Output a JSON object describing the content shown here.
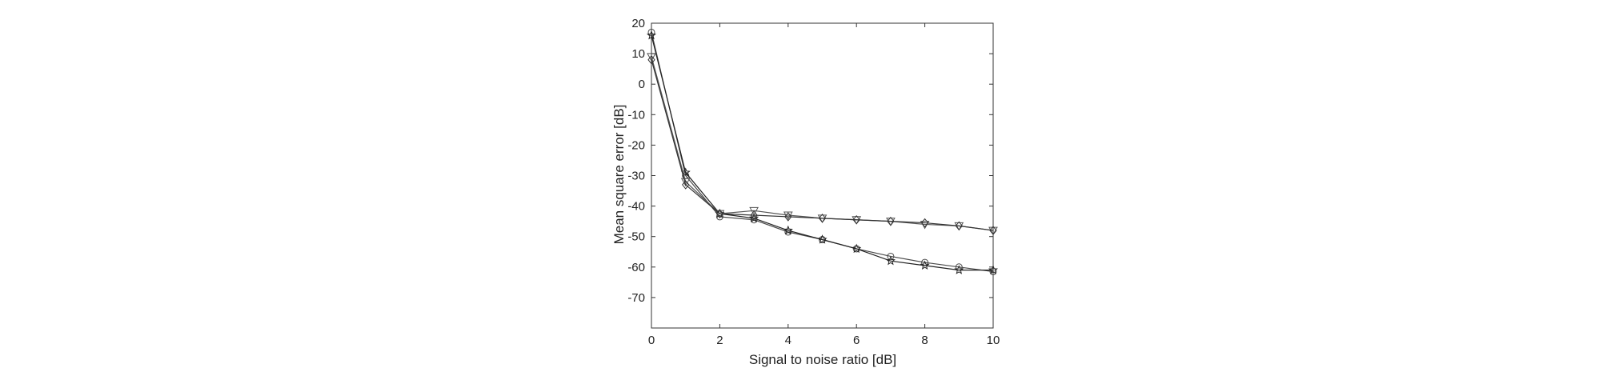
{
  "chart_data": {
    "type": "line",
    "title": "",
    "xlabel": "Signal to noise ratio   [dB]",
    "ylabel": "Mean square error [dB]",
    "xlim": [
      0,
      10
    ],
    "ylim": [
      -80,
      20
    ],
    "xticks": [
      0,
      2,
      4,
      6,
      8,
      10
    ],
    "yticks": [
      20,
      10,
      0,
      -10,
      -20,
      -30,
      -40,
      -50,
      -60,
      -70
    ],
    "grid": false,
    "x": [
      0,
      1,
      2,
      3,
      4,
      5,
      6,
      7,
      8,
      9,
      10
    ],
    "series": [
      {
        "marker": "circle",
        "color": "#4a4a4a",
        "values": [
          17,
          -30,
          -43.5,
          -44.5,
          -48.5,
          -51,
          -54,
          -56.5,
          -58.5,
          -60,
          -61.5
        ]
      },
      {
        "marker": "star",
        "color": "#222222",
        "values": [
          16,
          -29,
          -42.5,
          -44,
          -48,
          -51,
          -54,
          -58,
          -59.5,
          -61,
          -61
        ]
      },
      {
        "marker": "triangle",
        "color": "#555555",
        "values": [
          9,
          -32,
          -42.5,
          -41.5,
          -43,
          -44,
          -44.5,
          -45,
          -46,
          -46.5,
          -48
        ]
      },
      {
        "marker": "diamond",
        "color": "#333333",
        "values": [
          8,
          -33,
          -42.5,
          -43,
          -43.5,
          -44,
          -44.5,
          -45,
          -45.5,
          -46.5,
          -48
        ]
      }
    ]
  }
}
